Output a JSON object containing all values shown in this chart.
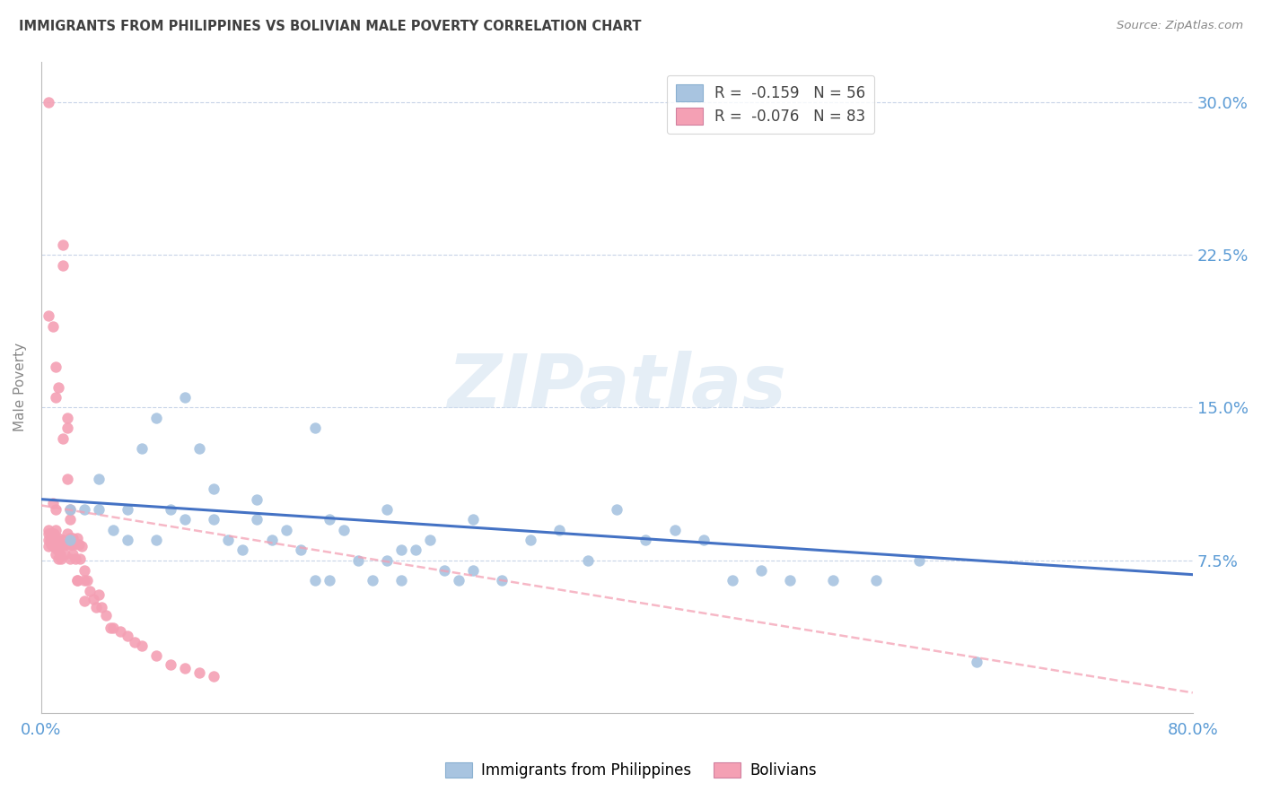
{
  "title": "IMMIGRANTS FROM PHILIPPINES VS BOLIVIAN MALE POVERTY CORRELATION CHART",
  "source": "Source: ZipAtlas.com",
  "ylabel": "Male Poverty",
  "legend_blue_r": "R =  -0.159",
  "legend_blue_n": "N = 56",
  "legend_pink_r": "R =  -0.076",
  "legend_pink_n": "N = 83",
  "watermark": "ZIPatlas",
  "yticks": [
    0.075,
    0.15,
    0.225,
    0.3
  ],
  "ytick_labels": [
    "7.5%",
    "15.0%",
    "22.5%",
    "30.0%"
  ],
  "blue_color": "#a8c4e0",
  "pink_color": "#f4a0b4",
  "blue_line_color": "#4472c4",
  "pink_line_color": "#f4a0b4",
  "title_color": "#404040",
  "axis_label_color": "#5b9bd5",
  "grid_color": "#c8d4e8",
  "blue_scatter_x": [
    0.02,
    0.03,
    0.04,
    0.05,
    0.02,
    0.06,
    0.04,
    0.06,
    0.07,
    0.08,
    0.09,
    0.1,
    0.11,
    0.12,
    0.13,
    0.14,
    0.15,
    0.16,
    0.17,
    0.18,
    0.19,
    0.2,
    0.21,
    0.22,
    0.23,
    0.24,
    0.25,
    0.26,
    0.27,
    0.28,
    0.29,
    0.3,
    0.32,
    0.34,
    0.36,
    0.38,
    0.4,
    0.42,
    0.44,
    0.46,
    0.48,
    0.5,
    0.52,
    0.55,
    0.58,
    0.61,
    0.65,
    0.19,
    0.24,
    0.3,
    0.1,
    0.08,
    0.12,
    0.15,
    0.2,
    0.25
  ],
  "blue_scatter_y": [
    0.1,
    0.1,
    0.1,
    0.09,
    0.085,
    0.085,
    0.115,
    0.1,
    0.13,
    0.085,
    0.1,
    0.095,
    0.13,
    0.095,
    0.085,
    0.08,
    0.095,
    0.085,
    0.09,
    0.08,
    0.065,
    0.065,
    0.09,
    0.075,
    0.065,
    0.075,
    0.065,
    0.08,
    0.085,
    0.07,
    0.065,
    0.07,
    0.065,
    0.085,
    0.09,
    0.075,
    0.1,
    0.085,
    0.09,
    0.085,
    0.065,
    0.07,
    0.065,
    0.065,
    0.065,
    0.075,
    0.025,
    0.14,
    0.1,
    0.095,
    0.155,
    0.145,
    0.11,
    0.105,
    0.095,
    0.08
  ],
  "pink_scatter_x": [
    0.005,
    0.005,
    0.005,
    0.005,
    0.005,
    0.006,
    0.006,
    0.007,
    0.007,
    0.008,
    0.008,
    0.008,
    0.009,
    0.009,
    0.01,
    0.01,
    0.01,
    0.01,
    0.01,
    0.011,
    0.011,
    0.012,
    0.012,
    0.012,
    0.013,
    0.013,
    0.014,
    0.014,
    0.015,
    0.015,
    0.015,
    0.016,
    0.016,
    0.017,
    0.018,
    0.018,
    0.018,
    0.019,
    0.02,
    0.02,
    0.02,
    0.02,
    0.021,
    0.022,
    0.022,
    0.023,
    0.024,
    0.025,
    0.025,
    0.026,
    0.027,
    0.028,
    0.03,
    0.03,
    0.032,
    0.034,
    0.036,
    0.038,
    0.04,
    0.042,
    0.045,
    0.048,
    0.05,
    0.055,
    0.06,
    0.065,
    0.07,
    0.08,
    0.09,
    0.1,
    0.11,
    0.12,
    0.008,
    0.01,
    0.012,
    0.015,
    0.018,
    0.02,
    0.025,
    0.03,
    0.008,
    0.01,
    0.005
  ],
  "pink_scatter_y": [
    0.3,
    0.09,
    0.088,
    0.085,
    0.082,
    0.088,
    0.085,
    0.088,
    0.083,
    0.088,
    0.085,
    0.082,
    0.088,
    0.082,
    0.1,
    0.09,
    0.085,
    0.082,
    0.078,
    0.085,
    0.08,
    0.086,
    0.082,
    0.076,
    0.083,
    0.078,
    0.083,
    0.076,
    0.22,
    0.23,
    0.085,
    0.083,
    0.078,
    0.083,
    0.088,
    0.145,
    0.14,
    0.083,
    0.1,
    0.086,
    0.083,
    0.076,
    0.083,
    0.086,
    0.078,
    0.083,
    0.076,
    0.086,
    0.065,
    0.083,
    0.076,
    0.082,
    0.07,
    0.065,
    0.065,
    0.06,
    0.056,
    0.052,
    0.058,
    0.052,
    0.048,
    0.042,
    0.042,
    0.04,
    0.038,
    0.035,
    0.033,
    0.028,
    0.024,
    0.022,
    0.02,
    0.018,
    0.19,
    0.17,
    0.16,
    0.135,
    0.115,
    0.095,
    0.065,
    0.055,
    0.103,
    0.155,
    0.195
  ],
  "xlim": [
    0.0,
    0.8
  ],
  "ylim": [
    0.0,
    0.32
  ],
  "blue_line_x": [
    0.0,
    0.8
  ],
  "blue_line_y": [
    0.105,
    0.068
  ],
  "pink_line_x": [
    0.0,
    0.8
  ],
  "pink_line_y": [
    0.102,
    0.01
  ],
  "marker_size": 80,
  "xtick_positions": [
    0.0,
    0.2,
    0.4,
    0.6,
    0.8
  ],
  "xtick_labels": [
    "0.0%",
    "",
    "",
    "",
    "80.0%"
  ]
}
